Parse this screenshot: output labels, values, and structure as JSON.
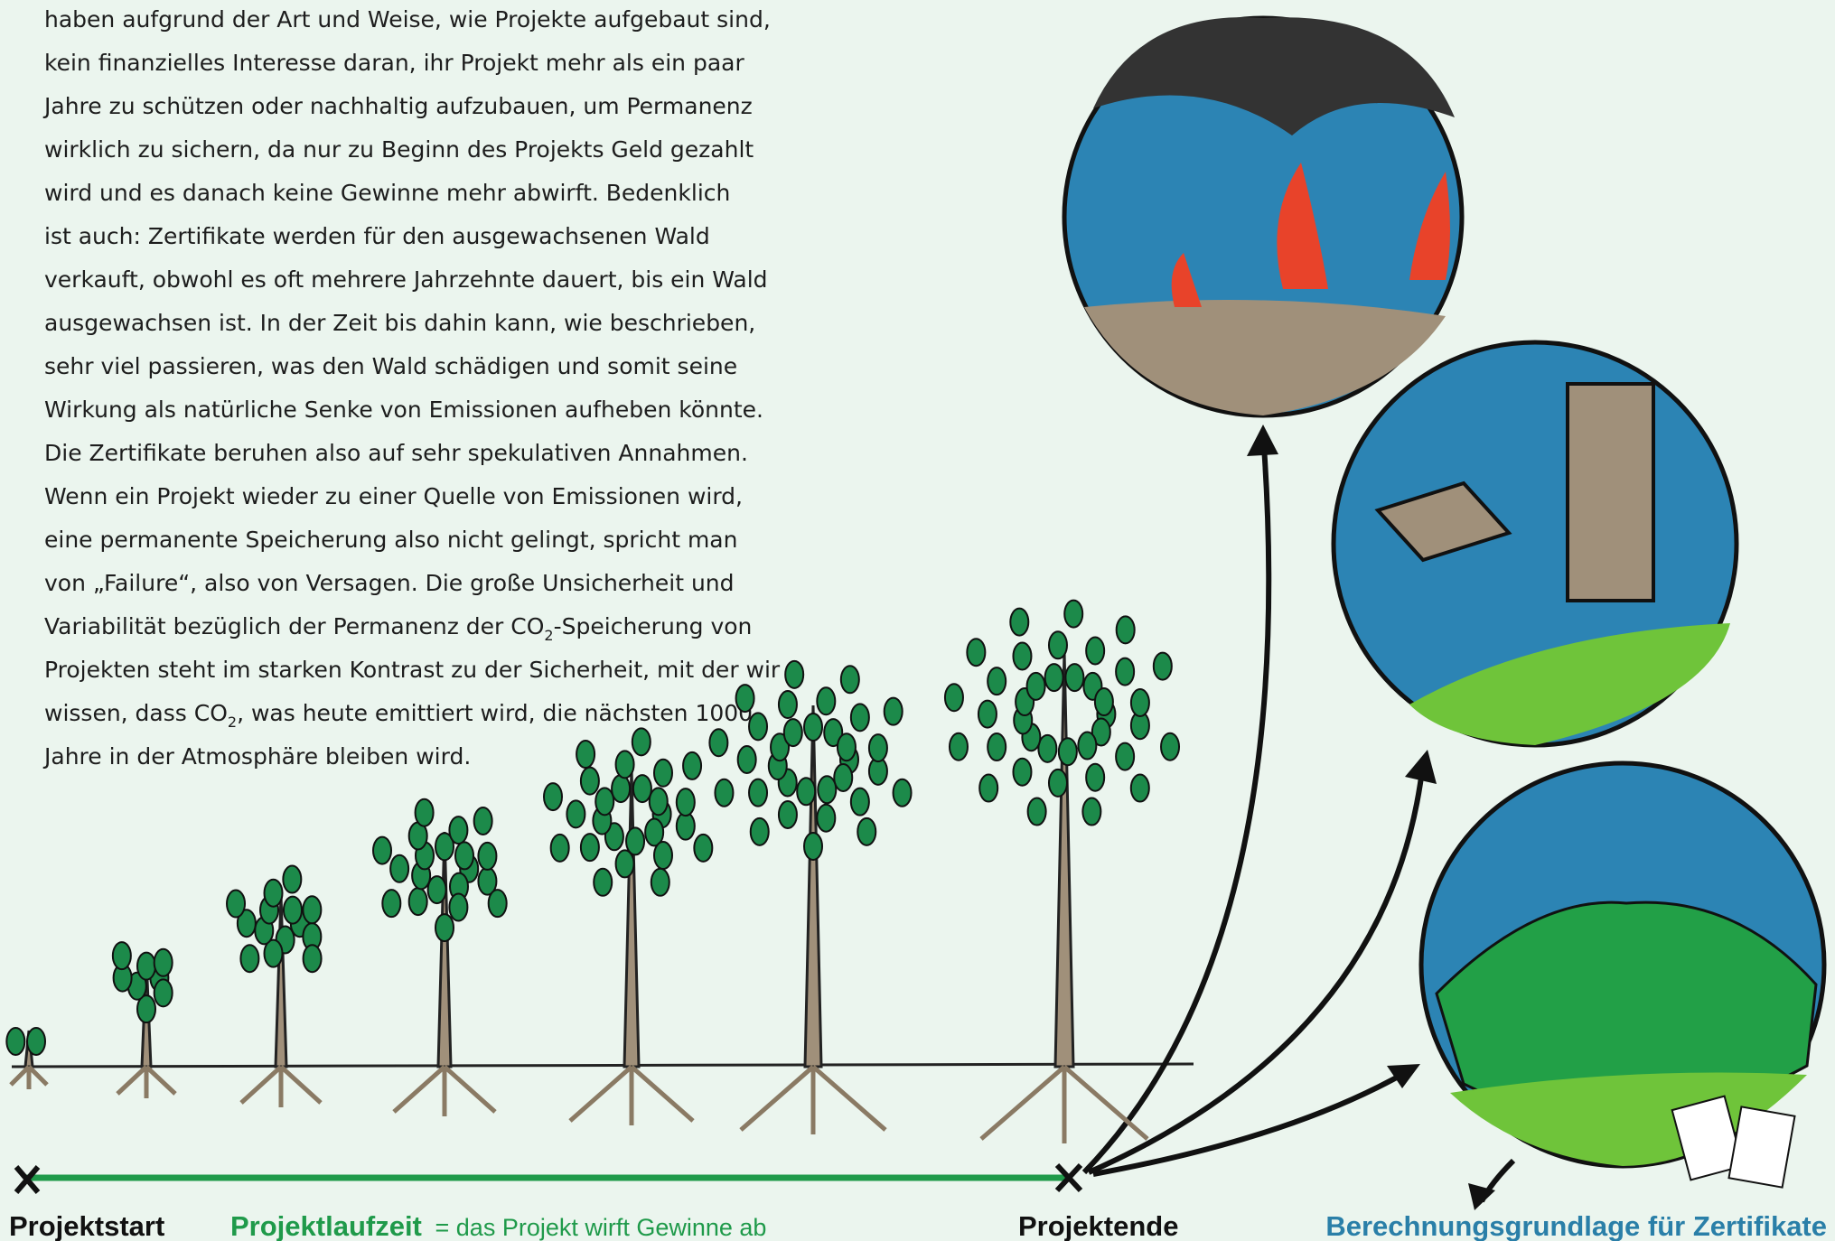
{
  "body": {
    "lines": [
      "haben aufgrund der Art und Weise, wie Projekte aufgebaut sind,",
      "kein finanzielles Interesse daran, ihr Projekt mehr als ein paar",
      "Jahre zu schützen oder nachhaltig aufzubauen, um Permanenz",
      "wirklich zu sichern, da nur zu Beginn des Projekts Geld gezahlt",
      "wird und es danach keine Gewinne mehr abwirft. Bedenklich",
      "ist auch: Zertifikate werden für den ausgewachsenen Wald",
      "verkauft, obwohl es oft mehrere Jahrzehnte dauert, bis ein Wald",
      "ausgewachsen ist. In der Zeit bis dahin kann, wie beschrieben,",
      "sehr viel passieren, was den Wald schädigen und somit seine",
      "Wirkung als natürliche Senke von Emissionen aufheben könnte.",
      "Die Zertifikate beruhen also auf sehr spekulativen Annahmen.",
      "Wenn ein Projekt wieder zu einer Quelle von Emissionen wird,",
      "eine permanente Speicherung also nicht gelingt, spricht man",
      "von „Failure“, also von Versagen. Die große Unsicherheit und",
      {
        "before": "Variabilität bezüglich der Permanenz der CO",
        "sub": "2",
        "after": "-Speicherung von"
      },
      "Projekten steht im starken Kontrast zu der Sicherheit, mit der wir",
      {
        "before": "wissen, dass CO",
        "sub": "2",
        "after": ", was heute emittiert wird, die nächsten 1000"
      },
      "Jahre in der Atmosphäre bleiben wird."
    ]
  },
  "labels": {
    "start": "Projektstart",
    "duration": "Projektlaufzeit",
    "duration_note": "= das Projekt wirft Gewinne ab",
    "end": "Projektende",
    "basis": "Berechnungsgrundlage für Zertifikate"
  }
}
